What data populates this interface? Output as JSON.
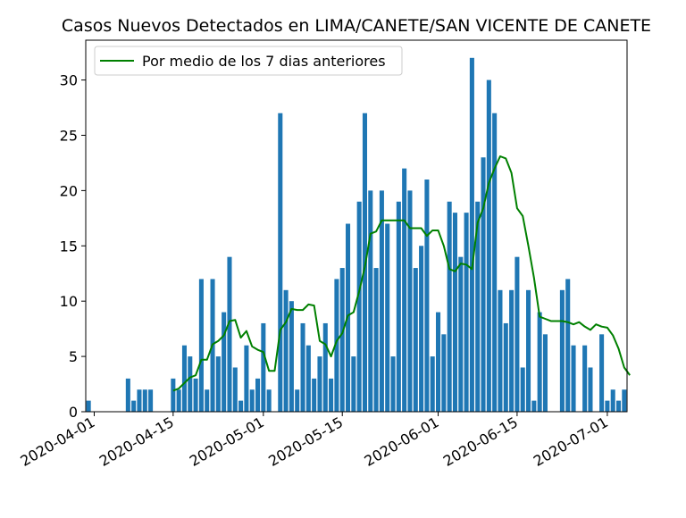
{
  "chart_data": {
    "type": "bar",
    "title": "Casos Nuevos Detectados en LIMA/CANETE/SAN VICENTE DE CANETE",
    "xlabel": "",
    "ylabel": "",
    "x_start": "2020-03-31",
    "x_end": "2020-07-04",
    "ylim": [
      0,
      33.6
    ],
    "x_ticks": [
      "2020-04-01",
      "2020-04-15",
      "2020-05-01",
      "2020-05-15",
      "2020-06-01",
      "2020-06-15",
      "2020-07-01"
    ],
    "y_ticks": [
      0,
      5,
      10,
      15,
      20,
      25,
      30
    ],
    "legend_position": "top-left",
    "series": [
      {
        "name": "",
        "kind": "bar",
        "color": "#1f77b4",
        "points": [
          [
            "2020-03-31",
            1
          ],
          [
            "2020-04-07",
            3
          ],
          [
            "2020-04-08",
            1
          ],
          [
            "2020-04-09",
            2
          ],
          [
            "2020-04-10",
            2
          ],
          [
            "2020-04-11",
            2
          ],
          [
            "2020-04-15",
            3
          ],
          [
            "2020-04-16",
            2
          ],
          [
            "2020-04-17",
            6
          ],
          [
            "2020-04-18",
            5
          ],
          [
            "2020-04-19",
            3
          ],
          [
            "2020-04-20",
            12
          ],
          [
            "2020-04-21",
            2
          ],
          [
            "2020-04-22",
            12
          ],
          [
            "2020-04-23",
            5
          ],
          [
            "2020-04-24",
            9
          ],
          [
            "2020-04-25",
            14
          ],
          [
            "2020-04-26",
            4
          ],
          [
            "2020-04-27",
            1
          ],
          [
            "2020-04-28",
            6
          ],
          [
            "2020-04-29",
            2
          ],
          [
            "2020-04-30",
            3
          ],
          [
            "2020-05-01",
            8
          ],
          [
            "2020-05-02",
            2
          ],
          [
            "2020-05-04",
            27
          ],
          [
            "2020-05-05",
            11
          ],
          [
            "2020-05-06",
            10
          ],
          [
            "2020-05-07",
            2
          ],
          [
            "2020-05-08",
            8
          ],
          [
            "2020-05-09",
            6
          ],
          [
            "2020-05-10",
            3
          ],
          [
            "2020-05-11",
            5
          ],
          [
            "2020-05-12",
            8
          ],
          [
            "2020-05-13",
            3
          ],
          [
            "2020-05-14",
            12
          ],
          [
            "2020-05-15",
            13
          ],
          [
            "2020-05-16",
            17
          ],
          [
            "2020-05-17",
            5
          ],
          [
            "2020-05-18",
            19
          ],
          [
            "2020-05-19",
            27
          ],
          [
            "2020-05-20",
            20
          ],
          [
            "2020-05-21",
            13
          ],
          [
            "2020-05-22",
            20
          ],
          [
            "2020-05-23",
            17
          ],
          [
            "2020-05-24",
            5
          ],
          [
            "2020-05-25",
            19
          ],
          [
            "2020-05-26",
            22
          ],
          [
            "2020-05-27",
            20
          ],
          [
            "2020-05-28",
            13
          ],
          [
            "2020-05-29",
            15
          ],
          [
            "2020-05-30",
            21
          ],
          [
            "2020-05-31",
            5
          ],
          [
            "2020-06-01",
            9
          ],
          [
            "2020-06-02",
            7
          ],
          [
            "2020-06-03",
            19
          ],
          [
            "2020-06-04",
            18
          ],
          [
            "2020-06-05",
            14
          ],
          [
            "2020-06-06",
            18
          ],
          [
            "2020-06-07",
            32
          ],
          [
            "2020-06-08",
            19
          ],
          [
            "2020-06-09",
            23
          ],
          [
            "2020-06-10",
            30
          ],
          [
            "2020-06-11",
            27
          ],
          [
            "2020-06-12",
            11
          ],
          [
            "2020-06-13",
            8
          ],
          [
            "2020-06-14",
            11
          ],
          [
            "2020-06-15",
            14
          ],
          [
            "2020-06-16",
            4
          ],
          [
            "2020-06-17",
            11
          ],
          [
            "2020-06-18",
            1
          ],
          [
            "2020-06-19",
            9
          ],
          [
            "2020-06-20",
            7
          ],
          [
            "2020-06-23",
            11
          ],
          [
            "2020-06-24",
            12
          ],
          [
            "2020-06-25",
            6
          ],
          [
            "2020-06-27",
            6
          ],
          [
            "2020-06-28",
            4
          ],
          [
            "2020-06-30",
            7
          ],
          [
            "2020-07-01",
            1
          ],
          [
            "2020-07-02",
            2
          ],
          [
            "2020-07-03",
            1
          ],
          [
            "2020-07-04",
            2
          ]
        ]
      },
      {
        "name": "Por medio de los 7 dias anteriores",
        "kind": "line",
        "color": "#008000",
        "points": [
          [
            "2020-04-15",
            1.9
          ],
          [
            "2020-04-16",
            2.1
          ],
          [
            "2020-04-17",
            2.6
          ],
          [
            "2020-04-18",
            3.1
          ],
          [
            "2020-04-19",
            3.3
          ],
          [
            "2020-04-20",
            4.7
          ],
          [
            "2020-04-21",
            4.7
          ],
          [
            "2020-04-22",
            6.1
          ],
          [
            "2020-04-23",
            6.4
          ],
          [
            "2020-04-24",
            6.9
          ],
          [
            "2020-04-25",
            8.2
          ],
          [
            "2020-04-26",
            8.3
          ],
          [
            "2020-04-27",
            6.7
          ],
          [
            "2020-04-28",
            7.3
          ],
          [
            "2020-04-29",
            5.9
          ],
          [
            "2020-04-30",
            5.6
          ],
          [
            "2020-05-01",
            5.4
          ],
          [
            "2020-05-02",
            3.7
          ],
          [
            "2020-05-03",
            3.7
          ],
          [
            "2020-05-04",
            7.4
          ],
          [
            "2020-05-05",
            8.1
          ],
          [
            "2020-05-06",
            9.3
          ],
          [
            "2020-05-07",
            9.2
          ],
          [
            "2020-05-08",
            9.2
          ],
          [
            "2020-05-09",
            9.7
          ],
          [
            "2020-05-10",
            9.6
          ],
          [
            "2020-05-11",
            6.4
          ],
          [
            "2020-05-12",
            6.1
          ],
          [
            "2020-05-13",
            5.0
          ],
          [
            "2020-05-14",
            6.4
          ],
          [
            "2020-05-15",
            7.1
          ],
          [
            "2020-05-16",
            8.7
          ],
          [
            "2020-05-17",
            9.0
          ],
          [
            "2020-05-18",
            10.9
          ],
          [
            "2020-05-19",
            13.1
          ],
          [
            "2020-05-20",
            16.1
          ],
          [
            "2020-05-21",
            16.3
          ],
          [
            "2020-05-22",
            17.3
          ],
          [
            "2020-05-23",
            17.3
          ],
          [
            "2020-05-24",
            17.3
          ],
          [
            "2020-05-25",
            17.3
          ],
          [
            "2020-05-26",
            17.3
          ],
          [
            "2020-05-27",
            16.6
          ],
          [
            "2020-05-28",
            16.6
          ],
          [
            "2020-05-29",
            16.6
          ],
          [
            "2020-05-30",
            15.9
          ],
          [
            "2020-05-31",
            16.4
          ],
          [
            "2020-06-01",
            16.4
          ],
          [
            "2020-06-02",
            15.0
          ],
          [
            "2020-06-03",
            12.9
          ],
          [
            "2020-06-04",
            12.7
          ],
          [
            "2020-06-05",
            13.4
          ],
          [
            "2020-06-06",
            13.3
          ],
          [
            "2020-06-07",
            12.9
          ],
          [
            "2020-06-08",
            17.1
          ],
          [
            "2020-06-09",
            18.4
          ],
          [
            "2020-06-10",
            20.7
          ],
          [
            "2020-06-11",
            22.0
          ],
          [
            "2020-06-12",
            23.1
          ],
          [
            "2020-06-13",
            22.9
          ],
          [
            "2020-06-14",
            21.6
          ],
          [
            "2020-06-15",
            18.4
          ],
          [
            "2020-06-16",
            17.7
          ],
          [
            "2020-06-17",
            15.0
          ],
          [
            "2020-06-18",
            12.1
          ],
          [
            "2020-06-19",
            8.6
          ],
          [
            "2020-06-20",
            8.4
          ],
          [
            "2020-06-21",
            8.2
          ],
          [
            "2020-06-22",
            8.2
          ],
          [
            "2020-06-23",
            8.2
          ],
          [
            "2020-06-24",
            8.1
          ],
          [
            "2020-06-25",
            7.9
          ],
          [
            "2020-06-26",
            8.1
          ],
          [
            "2020-06-27",
            7.7
          ],
          [
            "2020-06-28",
            7.4
          ],
          [
            "2020-06-29",
            7.9
          ],
          [
            "2020-06-30",
            7.7
          ],
          [
            "2020-07-01",
            7.6
          ],
          [
            "2020-07-02",
            6.9
          ],
          [
            "2020-07-03",
            5.7
          ],
          [
            "2020-07-04",
            4.0
          ],
          [
            "2020-07-05",
            3.3
          ]
        ]
      }
    ]
  }
}
